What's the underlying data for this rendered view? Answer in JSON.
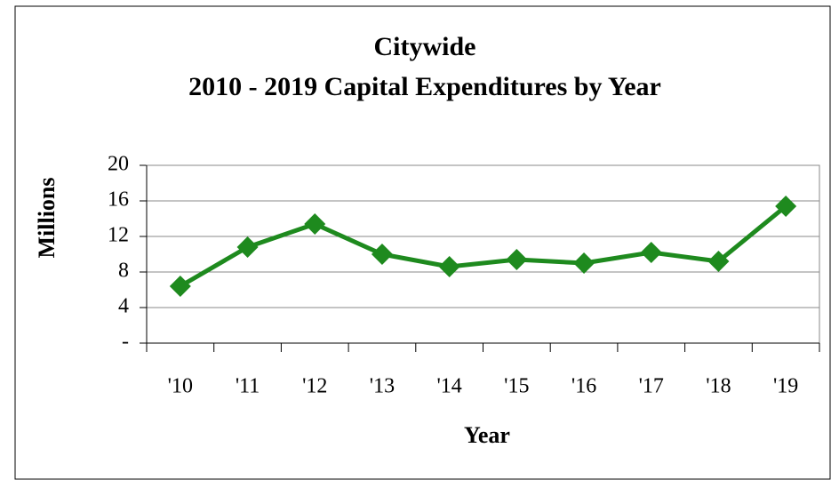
{
  "chart_data": {
    "type": "line",
    "title": "Citywide",
    "subtitle": "2010 - 2019 Capital Expenditures by Year",
    "x_label": "Year",
    "y_label": "Millions",
    "categories": [
      "'10",
      "'11",
      "'12",
      "'13",
      "'14",
      "'15",
      "'16",
      "'17",
      "'18",
      "'19"
    ],
    "series": [
      {
        "name": "Capital Expenditures",
        "color": "#1e8a1e",
        "values": [
          6.4,
          10.8,
          13.4,
          10.0,
          8.6,
          9.4,
          9.0,
          10.2,
          9.2,
          15.4
        ]
      }
    ],
    "ylim": [
      0,
      20
    ],
    "yticks": [
      {
        "value": 0,
        "label": "-"
      },
      4,
      8,
      12,
      16,
      20
    ],
    "grid": true
  }
}
